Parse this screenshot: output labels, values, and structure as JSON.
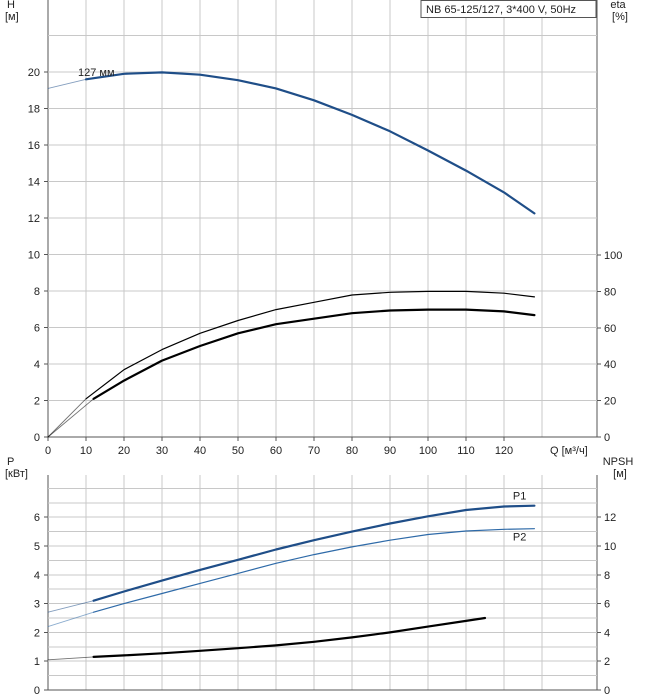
{
  "chart_data": [
    {
      "type": "line",
      "title": "NB 65-125/127, 3*400 V, 50Hz",
      "left_axis": {
        "label": "H",
        "unit": "[м]",
        "ylim": [
          0,
          22
        ],
        "ticks": [
          0,
          2,
          4,
          6,
          8,
          10,
          12,
          14,
          16,
          18,
          20
        ]
      },
      "right_axis": {
        "label": "eta",
        "unit": "[%]",
        "ylim": [
          0,
          100
        ],
        "ticks": [
          0,
          20,
          40,
          60,
          80,
          100
        ]
      },
      "x_axis": {
        "label": "Q [м³/ч]",
        "xlim": [
          0,
          133
        ],
        "ticks": [
          0,
          10,
          20,
          30,
          40,
          50,
          60,
          70,
          80,
          90,
          100,
          110,
          120
        ]
      },
      "grid": true,
      "series": [
        {
          "name": "127 мм",
          "axis": "left",
          "color": "#1f4e88",
          "width": 2.2,
          "faint_start": true,
          "x": [
            0,
            10,
            20,
            30,
            40,
            50,
            60,
            70,
            80,
            90,
            100,
            110,
            120,
            128
          ],
          "y": [
            19.1,
            19.6,
            19.9,
            19.98,
            19.85,
            19.55,
            19.1,
            18.45,
            17.65,
            16.75,
            15.7,
            14.6,
            13.4,
            12.25
          ]
        },
        {
          "axis": "right",
          "color": "#000000",
          "width": 1.2,
          "faint_start": true,
          "x": [
            0,
            10,
            20,
            30,
            40,
            50,
            60,
            70,
            80,
            90,
            100,
            110,
            120,
            128
          ],
          "y": [
            0,
            21,
            37,
            48,
            57,
            64,
            70,
            74,
            78,
            79.5,
            80,
            80,
            79,
            77
          ]
        },
        {
          "axis": "right",
          "color": "#000000",
          "width": 2.2,
          "faint_start": true,
          "x": [
            0,
            12,
            20,
            30,
            40,
            50,
            60,
            70,
            80,
            90,
            100,
            110,
            120,
            128
          ],
          "y": [
            0,
            21,
            31,
            42,
            50,
            57,
            62,
            65,
            68,
            69.5,
            70,
            70,
            69,
            67
          ]
        }
      ]
    },
    {
      "type": "line",
      "left_axis": {
        "label": "P",
        "unit": "[кВт]",
        "ylim": [
          0,
          7
        ],
        "ticks": [
          0,
          1,
          2,
          3,
          4,
          5,
          6
        ]
      },
      "right_axis": {
        "label": "NPSH",
        "unit": "[м]",
        "ylim": [
          0,
          14
        ],
        "ticks": [
          0,
          2,
          4,
          6,
          8,
          10,
          12
        ]
      },
      "x_axis": {
        "xlim": [
          0,
          133
        ]
      },
      "grid": true,
      "series": [
        {
          "name": "P1",
          "axis": "left",
          "color": "#1f4e88",
          "width": 2.2,
          "faint_start": true,
          "x": [
            0,
            12,
            20,
            30,
            40,
            50,
            60,
            70,
            80,
            90,
            100,
            110,
            120,
            128
          ],
          "y": [
            2.7,
            3.1,
            3.42,
            3.8,
            4.17,
            4.52,
            4.88,
            5.2,
            5.5,
            5.78,
            6.03,
            6.25,
            6.37,
            6.4
          ]
        },
        {
          "name": "P2",
          "axis": "left",
          "color": "#2e6aa8",
          "width": 1.2,
          "faint_start": true,
          "x": [
            0,
            12,
            20,
            30,
            40,
            50,
            60,
            70,
            80,
            90,
            100,
            110,
            120,
            128
          ],
          "y": [
            2.2,
            2.7,
            3.0,
            3.35,
            3.7,
            4.05,
            4.4,
            4.7,
            4.97,
            5.2,
            5.4,
            5.52,
            5.58,
            5.6
          ]
        },
        {
          "axis": "right",
          "color": "#000000",
          "width": 2.2,
          "faint_start": true,
          "x": [
            0,
            12,
            20,
            30,
            40,
            50,
            60,
            70,
            80,
            90,
            100,
            110,
            115
          ],
          "y": [
            2.1,
            2.3,
            2.4,
            2.55,
            2.72,
            2.9,
            3.1,
            3.35,
            3.65,
            4.0,
            4.4,
            4.8,
            5.0
          ]
        }
      ]
    }
  ]
}
